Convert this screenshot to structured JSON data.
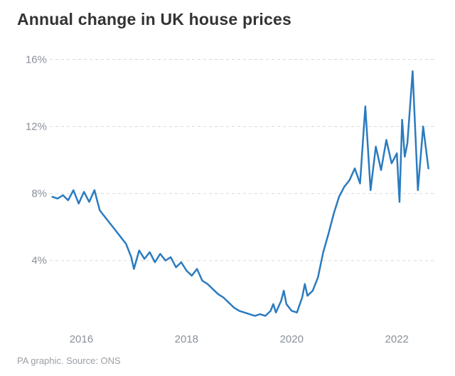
{
  "title": "Annual change in UK house prices",
  "footer": "PA graphic. Source: ONS",
  "chart": {
    "type": "line",
    "background_color": "#ffffff",
    "grid_color": "#d5d9dd",
    "axis_label_color": "#8a9199",
    "line_color": "#2b7bbf",
    "line_width": 2.5,
    "title_color": "#333333",
    "title_fontsize": 23,
    "title_fontweight": 700,
    "axis_fontsize": 15,
    "footer_color": "#9aa0a6",
    "footer_fontsize": 13,
    "x": {
      "min": 2015.4,
      "max": 2022.7,
      "ticks": [
        2016,
        2018,
        2020,
        2022
      ]
    },
    "y": {
      "min": 0,
      "max": 17,
      "ticks": [
        4,
        8,
        12,
        16
      ],
      "suffix": "%"
    },
    "series": [
      {
        "x": 2015.45,
        "y": 7.8
      },
      {
        "x": 2015.55,
        "y": 7.7
      },
      {
        "x": 2015.65,
        "y": 7.9
      },
      {
        "x": 2015.75,
        "y": 7.6
      },
      {
        "x": 2015.85,
        "y": 8.2
      },
      {
        "x": 2015.95,
        "y": 7.4
      },
      {
        "x": 2016.05,
        "y": 8.1
      },
      {
        "x": 2016.15,
        "y": 7.5
      },
      {
        "x": 2016.25,
        "y": 8.2
      },
      {
        "x": 2016.35,
        "y": 7.0
      },
      {
        "x": 2016.45,
        "y": 6.6
      },
      {
        "x": 2016.55,
        "y": 6.2
      },
      {
        "x": 2016.65,
        "y": 5.8
      },
      {
        "x": 2016.75,
        "y": 5.4
      },
      {
        "x": 2016.85,
        "y": 5.0
      },
      {
        "x": 2016.95,
        "y": 4.2
      },
      {
        "x": 2017.0,
        "y": 3.5
      },
      {
        "x": 2017.1,
        "y": 4.6
      },
      {
        "x": 2017.2,
        "y": 4.1
      },
      {
        "x": 2017.3,
        "y": 4.5
      },
      {
        "x": 2017.4,
        "y": 3.9
      },
      {
        "x": 2017.5,
        "y": 4.4
      },
      {
        "x": 2017.6,
        "y": 4.0
      },
      {
        "x": 2017.7,
        "y": 4.2
      },
      {
        "x": 2017.8,
        "y": 3.6
      },
      {
        "x": 2017.9,
        "y": 3.9
      },
      {
        "x": 2018.0,
        "y": 3.4
      },
      {
        "x": 2018.1,
        "y": 3.1
      },
      {
        "x": 2018.2,
        "y": 3.5
      },
      {
        "x": 2018.3,
        "y": 2.8
      },
      {
        "x": 2018.4,
        "y": 2.6
      },
      {
        "x": 2018.5,
        "y": 2.3
      },
      {
        "x": 2018.6,
        "y": 2.0
      },
      {
        "x": 2018.7,
        "y": 1.8
      },
      {
        "x": 2018.8,
        "y": 1.5
      },
      {
        "x": 2018.9,
        "y": 1.2
      },
      {
        "x": 2019.0,
        "y": 1.0
      },
      {
        "x": 2019.1,
        "y": 0.9
      },
      {
        "x": 2019.2,
        "y": 0.8
      },
      {
        "x": 2019.3,
        "y": 0.7
      },
      {
        "x": 2019.4,
        "y": 0.8
      },
      {
        "x": 2019.5,
        "y": 0.7
      },
      {
        "x": 2019.6,
        "y": 1.0
      },
      {
        "x": 2019.65,
        "y": 1.4
      },
      {
        "x": 2019.7,
        "y": 0.9
      },
      {
        "x": 2019.8,
        "y": 1.6
      },
      {
        "x": 2019.85,
        "y": 2.2
      },
      {
        "x": 2019.9,
        "y": 1.4
      },
      {
        "x": 2020.0,
        "y": 1.0
      },
      {
        "x": 2020.1,
        "y": 0.9
      },
      {
        "x": 2020.2,
        "y": 1.8
      },
      {
        "x": 2020.25,
        "y": 2.6
      },
      {
        "x": 2020.3,
        "y": 1.9
      },
      {
        "x": 2020.4,
        "y": 2.2
      },
      {
        "x": 2020.5,
        "y": 3.0
      },
      {
        "x": 2020.6,
        "y": 4.5
      },
      {
        "x": 2020.7,
        "y": 5.6
      },
      {
        "x": 2020.8,
        "y": 6.8
      },
      {
        "x": 2020.9,
        "y": 7.8
      },
      {
        "x": 2021.0,
        "y": 8.4
      },
      {
        "x": 2021.1,
        "y": 8.8
      },
      {
        "x": 2021.2,
        "y": 9.5
      },
      {
        "x": 2021.3,
        "y": 8.6
      },
      {
        "x": 2021.4,
        "y": 13.2
      },
      {
        "x": 2021.5,
        "y": 8.2
      },
      {
        "x": 2021.6,
        "y": 10.8
      },
      {
        "x": 2021.7,
        "y": 9.4
      },
      {
        "x": 2021.8,
        "y": 11.2
      },
      {
        "x": 2021.9,
        "y": 9.8
      },
      {
        "x": 2022.0,
        "y": 10.4
      },
      {
        "x": 2022.05,
        "y": 7.5
      },
      {
        "x": 2022.1,
        "y": 12.4
      },
      {
        "x": 2022.15,
        "y": 10.2
      },
      {
        "x": 2022.2,
        "y": 11.0
      },
      {
        "x": 2022.3,
        "y": 15.3
      },
      {
        "x": 2022.4,
        "y": 8.2
      },
      {
        "x": 2022.5,
        "y": 12.0
      },
      {
        "x": 2022.6,
        "y": 9.5
      }
    ]
  }
}
